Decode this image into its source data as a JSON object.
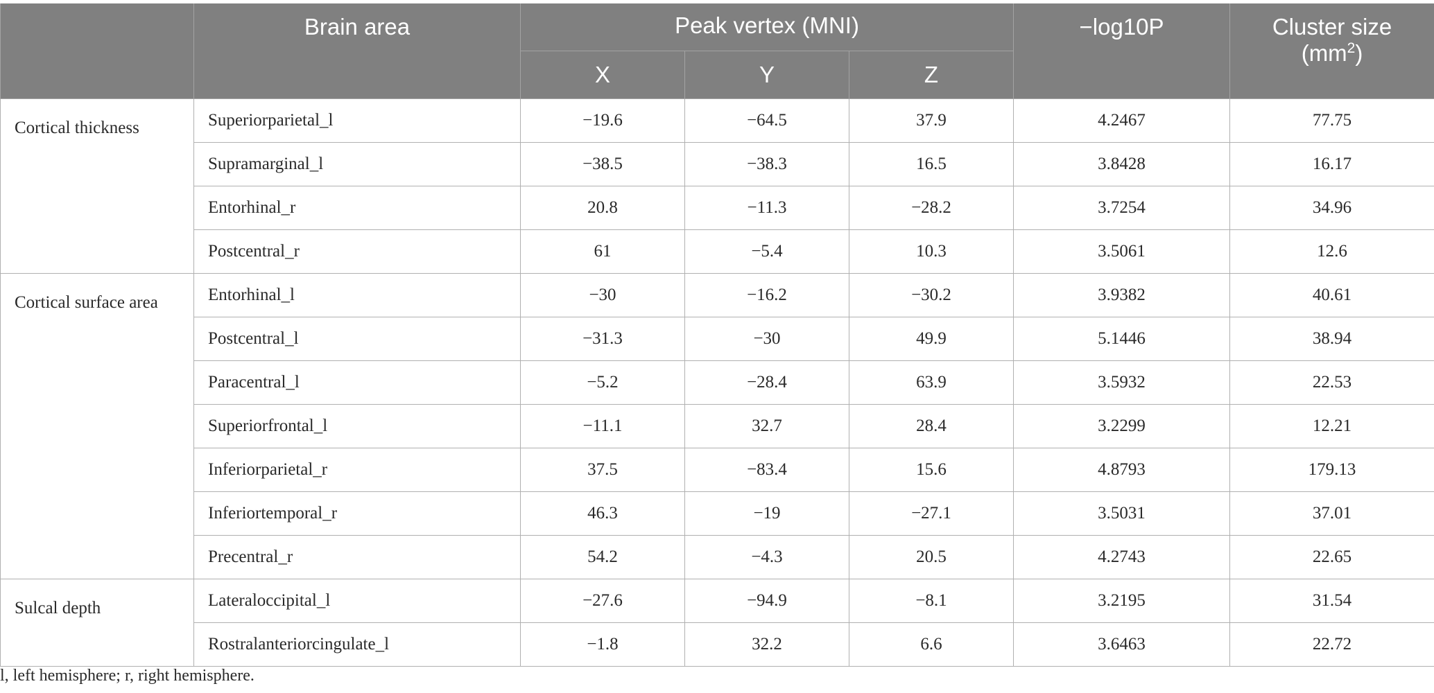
{
  "header": {
    "col_measure": "",
    "col_brain_area": "Brain area",
    "col_peak_vertex": "Peak vertex (MNI)",
    "col_x": "X",
    "col_y": "Y",
    "col_z": "Z",
    "col_log10p": "−log10P",
    "col_cluster_size": "Cluster size",
    "col_cluster_unit_base": "(mm",
    "col_cluster_unit_exp": "2",
    "col_cluster_unit_close": ")"
  },
  "groups": [
    {
      "measure": "Cortical thickness",
      "rows": [
        {
          "area": "Superiorparietal_l",
          "x": "−19.6",
          "y": "−64.5",
          "z": "37.9",
          "log10p": "4.2467",
          "cluster": "77.75"
        },
        {
          "area": "Supramarginal_l",
          "x": "−38.5",
          "y": "−38.3",
          "z": "16.5",
          "log10p": "3.8428",
          "cluster": "16.17"
        },
        {
          "area": "Entorhinal_r",
          "x": "20.8",
          "y": "−11.3",
          "z": "−28.2",
          "log10p": "3.7254",
          "cluster": "34.96"
        },
        {
          "area": "Postcentral_r",
          "x": "61",
          "y": "−5.4",
          "z": "10.3",
          "log10p": "3.5061",
          "cluster": "12.6"
        }
      ]
    },
    {
      "measure": "Cortical surface area",
      "rows": [
        {
          "area": "Entorhinal_l",
          "x": "−30",
          "y": "−16.2",
          "z": "−30.2",
          "log10p": "3.9382",
          "cluster": "40.61"
        },
        {
          "area": "Postcentral_l",
          "x": "−31.3",
          "y": "−30",
          "z": "49.9",
          "log10p": "5.1446",
          "cluster": "38.94"
        },
        {
          "area": "Paracentral_l",
          "x": "−5.2",
          "y": "−28.4",
          "z": "63.9",
          "log10p": "3.5932",
          "cluster": "22.53"
        },
        {
          "area": "Superiorfrontal_l",
          "x": "−11.1",
          "y": "32.7",
          "z": "28.4",
          "log10p": "3.2299",
          "cluster": "12.21"
        },
        {
          "area": "Inferiorparietal_r",
          "x": "37.5",
          "y": "−83.4",
          "z": "15.6",
          "log10p": "4.8793",
          "cluster": "179.13"
        },
        {
          "area": "Inferiortemporal_r",
          "x": "46.3",
          "y": "−19",
          "z": "−27.1",
          "log10p": "3.5031",
          "cluster": "37.01"
        },
        {
          "area": "Precentral_r",
          "x": "54.2",
          "y": "−4.3",
          "z": "20.5",
          "log10p": "4.2743",
          "cluster": "22.65"
        }
      ]
    },
    {
      "measure": "Sulcal depth",
      "rows": [
        {
          "area": "Lateraloccipital_l",
          "x": "−27.6",
          "y": "−94.9",
          "z": "−8.1",
          "log10p": "3.2195",
          "cluster": "31.54"
        },
        {
          "area": "Rostralanteriorcingulate_l",
          "x": "−1.8",
          "y": "32.2",
          "z": "6.6",
          "log10p": "3.6463",
          "cluster": "22.72"
        }
      ]
    }
  ],
  "footnote": "l, left hemisphere; r, right hemisphere.",
  "colors": {
    "header_bg": "#808080",
    "header_text": "#ffffff",
    "body_text": "#2a2a2a",
    "grid_line": "#b0b0b0"
  }
}
